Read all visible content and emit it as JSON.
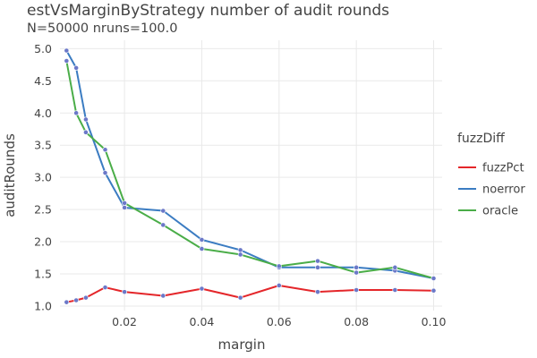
{
  "chart_data": {
    "type": "line",
    "title": "estVsMarginByStrategy number of audit rounds",
    "subtitle": "N=50000 nruns=100.0",
    "xlabel": "margin",
    "ylabel": "auditRounds",
    "xlim": [
      0.0033,
      0.1022
    ],
    "ylim": [
      0.93,
      5.13
    ],
    "x_ticks": [
      "0.02",
      "0.04",
      "0.06",
      "0.08",
      "0.10"
    ],
    "x_tick_values": [
      0.02,
      0.04,
      0.06,
      0.08,
      0.1
    ],
    "y_ticks": [
      "1.0",
      "1.5",
      "2.0",
      "2.5",
      "3.0",
      "3.5",
      "4.0",
      "4.5",
      "5.0"
    ],
    "y_tick_values": [
      1.0,
      1.5,
      2.0,
      2.5,
      3.0,
      3.5,
      4.0,
      4.5,
      5.0
    ],
    "grid": true,
    "legend": {
      "title": "fuzzDiff",
      "placement": "right"
    },
    "marker_color": "#6b78c8",
    "series": [
      {
        "name": "fuzzPct",
        "color": "#e4262a",
        "x": [
          0.005,
          0.0075,
          0.01,
          0.015,
          0.02,
          0.03,
          0.04,
          0.05,
          0.06,
          0.07,
          0.08,
          0.09,
          0.1
        ],
        "y": [
          1.06,
          1.09,
          1.13,
          1.29,
          1.22,
          1.16,
          1.27,
          1.13,
          1.32,
          1.22,
          1.25,
          1.25,
          1.24
        ]
      },
      {
        "name": "noerror",
        "color": "#3b7cc2",
        "x": [
          0.005,
          0.0075,
          0.01,
          0.015,
          0.02,
          0.03,
          0.04,
          0.05,
          0.06,
          0.07,
          0.08,
          0.09,
          0.1
        ],
        "y": [
          4.97,
          4.7,
          3.9,
          3.07,
          2.53,
          2.48,
          2.03,
          1.87,
          1.6,
          1.6,
          1.6,
          1.55,
          1.43
        ]
      },
      {
        "name": "oracle",
        "color": "#4aad48",
        "x": [
          0.005,
          0.0075,
          0.01,
          0.015,
          0.02,
          0.03,
          0.04,
          0.05,
          0.06,
          0.07,
          0.08,
          0.09,
          0.1
        ],
        "y": [
          4.81,
          4.0,
          3.7,
          3.43,
          2.6,
          2.26,
          1.89,
          1.8,
          1.62,
          1.7,
          1.52,
          1.6,
          1.43
        ]
      }
    ]
  }
}
